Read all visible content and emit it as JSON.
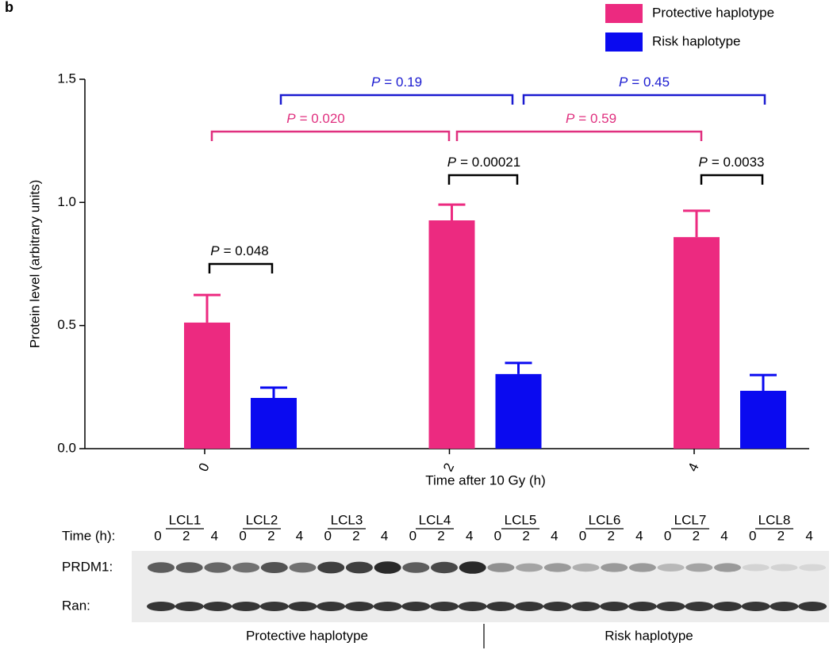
{
  "panel_label": "b",
  "chart_data": {
    "type": "bar",
    "y_label": "Protein level  (arbitrary units)",
    "x_label": "Time after 10 Gy (h)",
    "categories": [
      "0",
      "2",
      "4"
    ],
    "series": [
      {
        "name": "Protective haplotype",
        "color": "#ec2a80",
        "values": [
          0.512,
          0.927,
          0.859
        ],
        "errors": [
          0.112,
          0.064,
          0.107
        ]
      },
      {
        "name": "Risk haplotype",
        "color": "#0a0af0",
        "values": [
          0.206,
          0.303,
          0.235
        ],
        "errors": [
          0.042,
          0.045,
          0.064
        ]
      }
    ],
    "ylim": [
      0,
      1.5
    ],
    "yticks": [
      {
        "value": 0,
        "label": "0.0"
      },
      {
        "value": 0.5,
        "label": "0.5"
      },
      {
        "value": 1,
        "label": "1.0"
      },
      {
        "value": 1.5,
        "label": "1.5"
      }
    ],
    "annotations": [
      {
        "prefix": "P",
        "text": "= 0.19",
        "color": "#1a1ad0"
      },
      {
        "prefix": "P",
        "text": "= 0.45",
        "color": "#1a1ad0"
      },
      {
        "prefix": "P",
        "text": "= 0.020",
        "color": "#e0307f"
      },
      {
        "prefix": "P",
        "text": "= 0.59",
        "color": "#e0307f"
      },
      {
        "prefix": "P",
        "text": "= 0.00021",
        "color": "#000000"
      },
      {
        "prefix": "P",
        "text": "= 0.0033",
        "color": "#000000"
      },
      {
        "prefix": "P",
        "text": "= 0.048",
        "color": "#000000"
      }
    ]
  },
  "blot": {
    "cell_lines": [
      "LCL1",
      "LCL2",
      "LCL3",
      "LCL4",
      "LCL5",
      "LCL6",
      "LCL7",
      "LCL8"
    ],
    "time_label": "Time (h):",
    "time_points": [
      "0",
      "2",
      "4"
    ],
    "rows": [
      "PRDM1:",
      "Ran:"
    ],
    "groups": [
      "Protective haplotype",
      "Risk haplotype"
    ]
  }
}
